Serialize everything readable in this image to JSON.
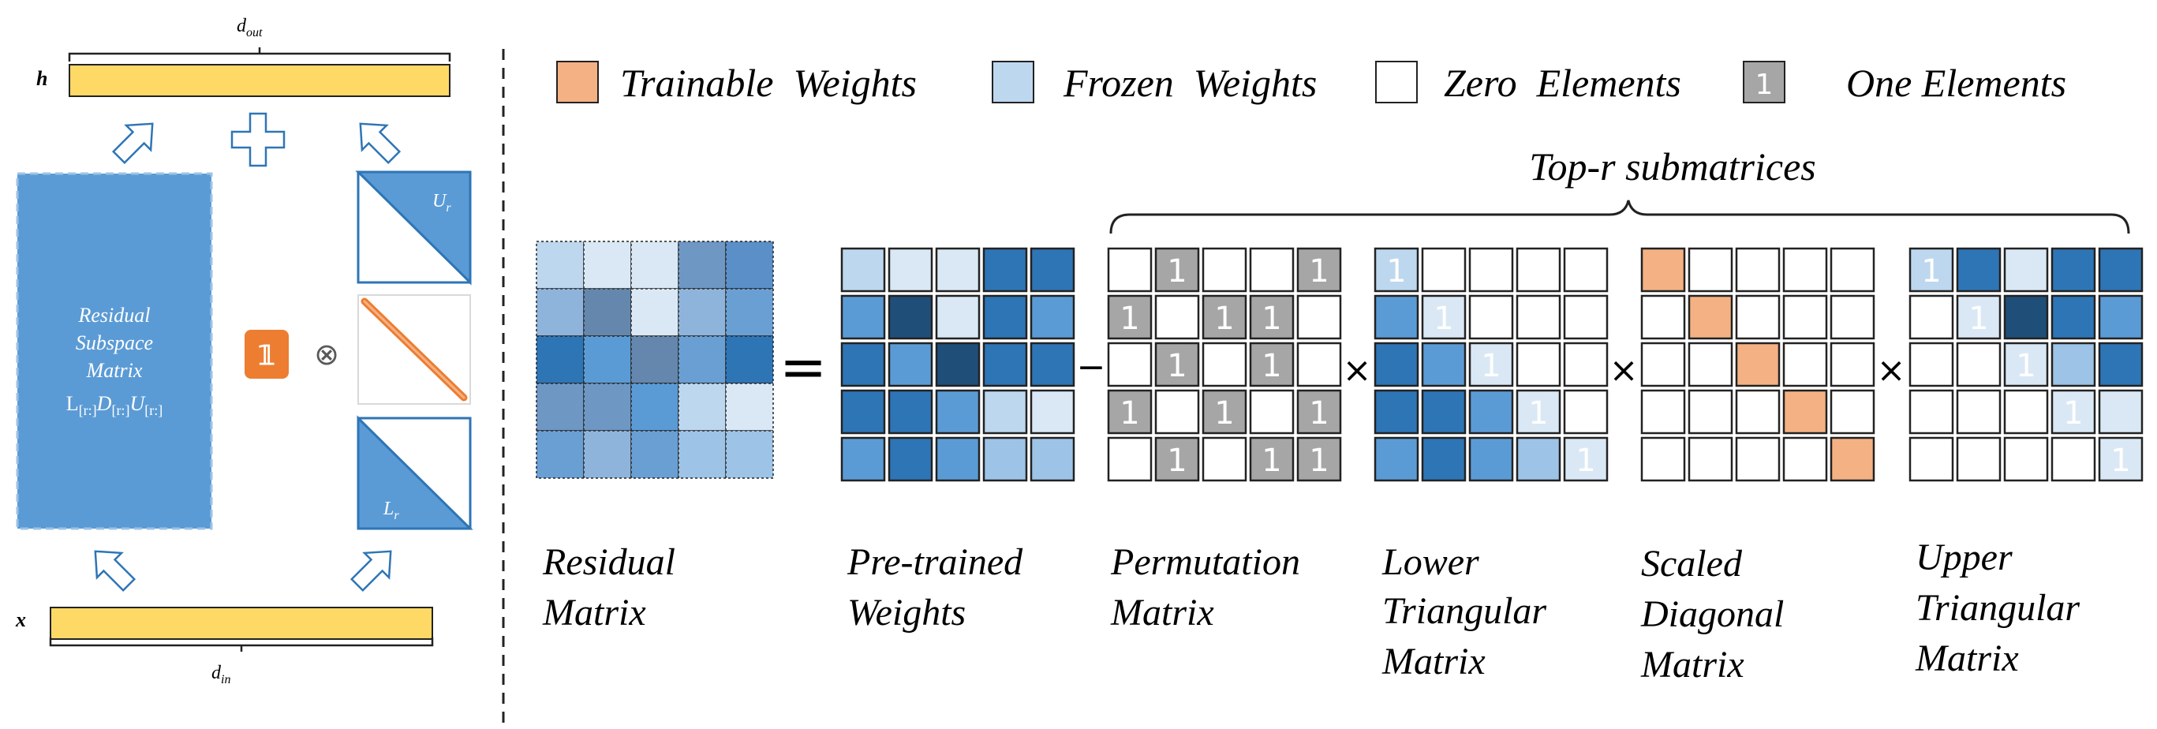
{
  "left_panel": {
    "d_out": "d",
    "d_out_sub": "out",
    "h_label": "h",
    "x_label": "x",
    "d_in": "d",
    "d_in_sub": "in",
    "residual_box": [
      "Residual",
      "Subspace",
      "Matrix"
    ],
    "residual_formula": {
      "L": "L",
      "L_sub": "[r:]",
      "D": "D",
      "D_sub": "[r:]",
      "U": "U",
      "U_sub": "[r:]"
    },
    "U_r": "U",
    "U_r_sub": "r",
    "L_r": "L",
    "L_r_sub": "r",
    "one_symbol": "𝟙",
    "otimes": "⊗"
  },
  "legend": [
    {
      "key": "trainable",
      "label": "Trainable  Weights",
      "color": "#f4b183"
    },
    {
      "key": "frozen",
      "label": "Frozen  Weights",
      "color": "#bdd7ee"
    },
    {
      "key": "zero",
      "label": "Zero  Elements",
      "color": "#ffffff"
    },
    {
      "key": "one",
      "label": "One Elements",
      "color": "#a6a6a6",
      "glyph": "1"
    }
  ],
  "top_r_label": "Top-r submatrices",
  "operators": {
    "equals": "=",
    "minus": "−",
    "times": "×"
  },
  "captions": {
    "residual": [
      "Residual",
      "Matrix"
    ],
    "pretrained": [
      "Pre-trained",
      "Weights"
    ],
    "permutation": [
      "Permutation",
      "Matrix"
    ],
    "lower": [
      "Lower",
      "Triangular",
      "Matrix"
    ],
    "diagonal": [
      "Scaled",
      "Diagonal",
      "Matrix"
    ],
    "upper": [
      "Upper",
      "Triangular",
      "Matrix"
    ]
  },
  "colors": {
    "yellow": "#ffd966",
    "blue_box": "#5b9bd5",
    "orange": "#f4b183",
    "orange_badge": "#ed7d31",
    "gray": "#a6a6a6",
    "c1": "#bdd7ee",
    "c2": "#dae8f5",
    "c3": "#2e75b6",
    "c4": "#5b9bd5",
    "c5": "#1f4e79",
    "c6": "#9dc3e6"
  },
  "matrices": {
    "residual": [
      [
        "#bdd7ee",
        "#dae8f5",
        "#dae8f5",
        "#6e97c4",
        "#5b8fc7"
      ],
      [
        "#8fb4dc",
        "#6587ad",
        "#dae8f5",
        "#8fb4dc",
        "#6a9fd3"
      ],
      [
        "#2e75b6",
        "#5b9bd5",
        "#6587ad",
        "#6a9fd3",
        "#2e75b6"
      ],
      [
        "#6e97c4",
        "#6e97c4",
        "#5b9bd5",
        "#bdd7ee",
        "#dae8f5"
      ],
      [
        "#6a9fd3",
        "#8fb4dc",
        "#6a9fd3",
        "#9dc3e6",
        "#9dc3e6"
      ]
    ],
    "pretrained": [
      [
        "#bdd7ee",
        "#dae8f5",
        "#dae8f5",
        "#2e75b6",
        "#2e75b6"
      ],
      [
        "#5b9bd5",
        "#1f4e79",
        "#dae8f5",
        "#2e75b6",
        "#5b9bd5"
      ],
      [
        "#2e75b6",
        "#5b9bd5",
        "#1f4e79",
        "#2e75b6",
        "#2e75b6"
      ],
      [
        "#2e75b6",
        "#2e75b6",
        "#5b9bd5",
        "#bdd7ee",
        "#dae8f5"
      ],
      [
        "#5b9bd5",
        "#2e75b6",
        "#5b9bd5",
        "#9dc3e6",
        "#9dc3e6"
      ]
    ],
    "permutation": [
      [
        "#ffffff",
        "#a6a6a6:1",
        "#ffffff",
        "#ffffff",
        "#a6a6a6:1"
      ],
      [
        "#a6a6a6:1",
        "#ffffff",
        "#a6a6a6:1",
        "#a6a6a6:1",
        "#ffffff"
      ],
      [
        "#ffffff",
        "#a6a6a6:1",
        "#ffffff",
        "#a6a6a6:1",
        "#ffffff"
      ],
      [
        "#a6a6a6:1",
        "#ffffff",
        "#a6a6a6:1",
        "#ffffff",
        "#a6a6a6:1"
      ],
      [
        "#ffffff",
        "#a6a6a6:1",
        "#ffffff",
        "#a6a6a6:1",
        "#a6a6a6:1"
      ]
    ],
    "lower": [
      [
        "#bdd7ee:1",
        "#ffffff",
        "#ffffff",
        "#ffffff",
        "#ffffff"
      ],
      [
        "#5b9bd5",
        "#dae8f5:1",
        "#ffffff",
        "#ffffff",
        "#ffffff"
      ],
      [
        "#2e75b6",
        "#5b9bd5",
        "#dae8f5:1",
        "#ffffff",
        "#ffffff"
      ],
      [
        "#2e75b6",
        "#2e75b6",
        "#5b9bd5",
        "#dae8f5:1",
        "#ffffff"
      ],
      [
        "#5b9bd5",
        "#2e75b6",
        "#5b9bd5",
        "#9dc3e6",
        "#dae8f5:1"
      ]
    ],
    "diagonal": [
      [
        "#f4b183",
        "#ffffff",
        "#ffffff",
        "#ffffff",
        "#ffffff"
      ],
      [
        "#ffffff",
        "#f4b183",
        "#ffffff",
        "#ffffff",
        "#ffffff"
      ],
      [
        "#ffffff",
        "#ffffff",
        "#f4b183",
        "#ffffff",
        "#ffffff"
      ],
      [
        "#ffffff",
        "#ffffff",
        "#ffffff",
        "#f4b183",
        "#ffffff"
      ],
      [
        "#ffffff",
        "#ffffff",
        "#ffffff",
        "#ffffff",
        "#f4b183"
      ]
    ],
    "upper": [
      [
        "#bdd7ee:1",
        "#2e75b6",
        "#dae8f5",
        "#2e75b6",
        "#2e75b6"
      ],
      [
        "#ffffff",
        "#dae8f5:1",
        "#1f4e79",
        "#2e75b6",
        "#5b9bd5"
      ],
      [
        "#ffffff",
        "#ffffff",
        "#dae8f5:1",
        "#9dc3e6",
        "#2e75b6"
      ],
      [
        "#ffffff",
        "#ffffff",
        "#ffffff",
        "#dae8f5:1",
        "#dae8f5"
      ],
      [
        "#ffffff",
        "#ffffff",
        "#ffffff",
        "#ffffff",
        "#dae8f5:1"
      ]
    ]
  }
}
